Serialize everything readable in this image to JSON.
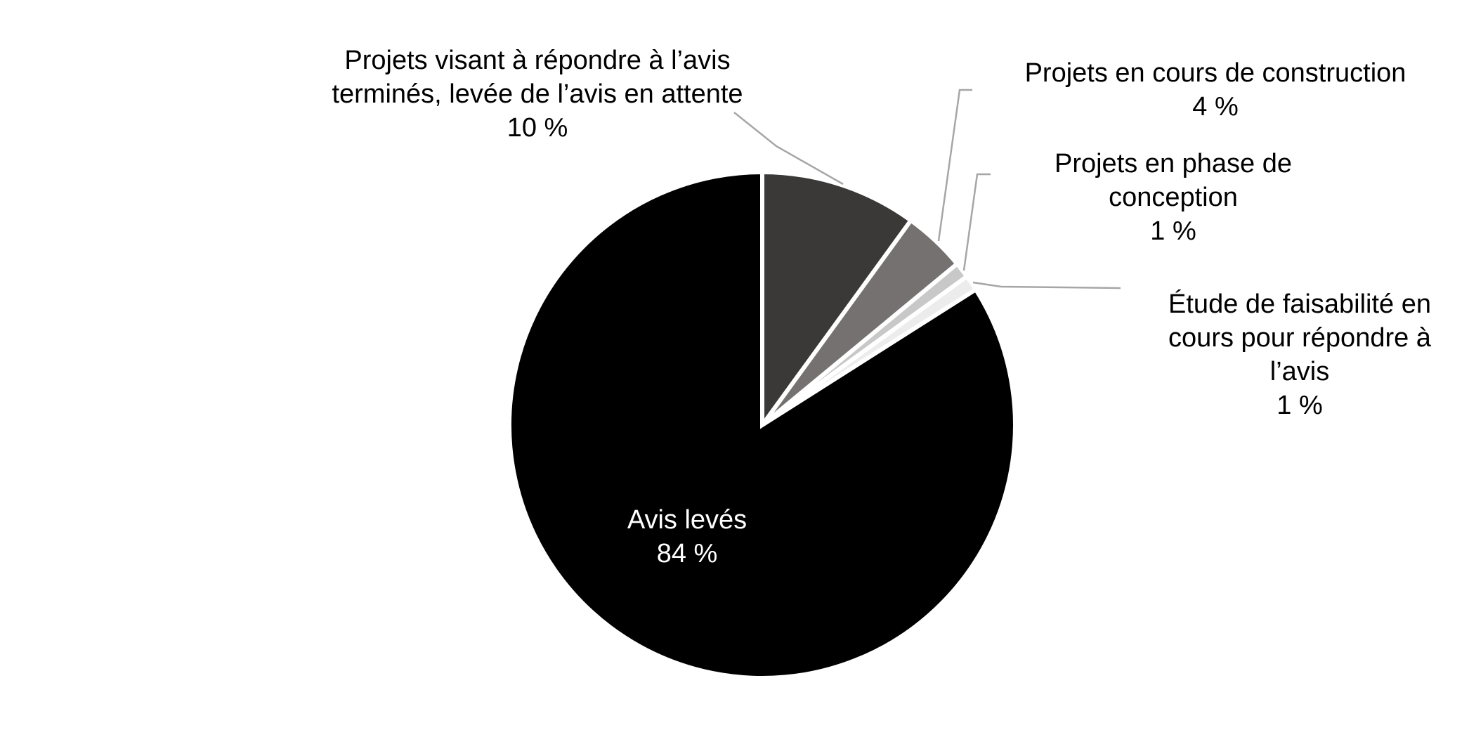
{
  "chart_data": {
    "type": "pie",
    "title": "",
    "start_angle_deg": 0,
    "direction": "clockwise",
    "slices": [
      {
        "label_lines": [
          "Projets visant à répondre à l’avis",
          "terminés, levée de l’avis en attente"
        ],
        "value_label": "10 %",
        "value": 10,
        "color": "#3b3937",
        "text_color": "#000000"
      },
      {
        "label_lines": [
          "Projets en cours de construction"
        ],
        "value_label": "4 %",
        "value": 4,
        "color": "#767171",
        "text_color": "#000000"
      },
      {
        "label_lines": [
          "Projets en phase de",
          "conception"
        ],
        "value_label": "1 %",
        "value": 1,
        "color": "#c8c8c8",
        "text_color": "#000000"
      },
      {
        "label_lines": [
          "Étude de faisabilité en",
          "cours pour répondre à",
          "l’avis"
        ],
        "value_label": "1 %",
        "value": 1,
        "color": "#ececec",
        "text_color": "#000000"
      },
      {
        "label_lines": [
          "Avis levés"
        ],
        "value_label": "84 %",
        "value": 84,
        "color": "#000000",
        "text_color": "#ffffff"
      }
    ],
    "leader_color": "#a6a6a6",
    "slice_border_color": "#ffffff"
  }
}
